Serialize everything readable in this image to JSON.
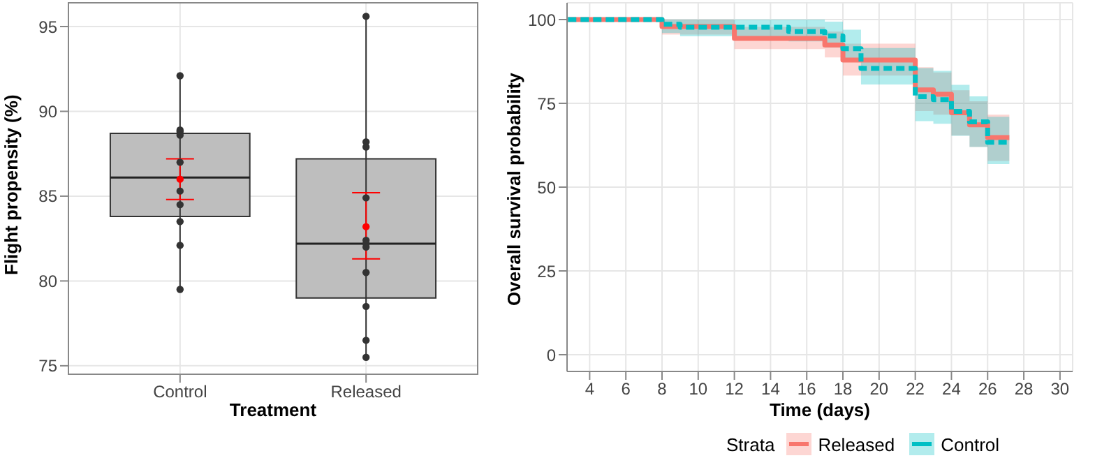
{
  "chart_data": [
    {
      "type": "box",
      "categories": [
        "Control",
        "Released"
      ],
      "xlabel": "Treatment",
      "ylabel": "Flight propensity (%)",
      "ylim": [
        74.5,
        96.4
      ],
      "yticks": [
        75,
        80,
        85,
        90,
        95
      ],
      "grid": true,
      "legend": false,
      "series": [
        {
          "type": "box",
          "color": "#bebebe",
          "boxes": [
            {
              "low": 79.5,
              "q1": 83.8,
              "median": 86.1,
              "q3": 88.7,
              "high": 92.1
            },
            {
              "low": 75.5,
              "q1": 79.0,
              "median": 82.2,
              "q3": 87.2,
              "high": 95.6
            }
          ]
        },
        {
          "type": "scatter",
          "color": "#333333",
          "x": [
            "Control",
            "Control",
            "Control",
            "Control",
            "Control",
            "Control",
            "Control",
            "Control",
            "Control",
            "Control",
            "Released",
            "Released",
            "Released",
            "Released",
            "Released",
            "Released",
            "Released",
            "Released",
            "Released",
            "Released",
            "Released"
          ],
          "values": [
            92.1,
            88.9,
            88.8,
            88.6,
            87.0,
            85.3,
            84.5,
            83.5,
            82.1,
            79.5,
            95.6,
            88.2,
            87.9,
            84.9,
            82.4,
            82.2,
            82.0,
            80.5,
            78.5,
            76.5,
            75.5
          ]
        },
        {
          "type": "scatter",
          "color": "#ff0000",
          "x": [
            "Control",
            "Released"
          ],
          "values": [
            86.0,
            83.2
          ],
          "errors": [
            [
              84.8,
              87.2
            ],
            [
              81.3,
              85.2
            ]
          ]
        }
      ]
    },
    {
      "type": "step",
      "xlabel": "Time (days)",
      "ylabel": "Overall survival probability",
      "legend_title": "Strata",
      "legend": "bottom",
      "xlim": [
        2.75,
        30.7
      ],
      "ylim": [
        -5,
        105
      ],
      "xticks": [
        4,
        6,
        8,
        10,
        12,
        14,
        16,
        18,
        20,
        22,
        24,
        26,
        28,
        30
      ],
      "yticks": [
        0,
        25,
        50,
        75,
        100
      ],
      "grid": true,
      "series": [
        {
          "name": "Released",
          "color": "#f8766d",
          "line_style": "solid",
          "x": [
            2.8,
            8,
            12,
            17,
            18,
            22,
            23,
            24,
            25,
            26,
            27.2
          ],
          "values": [
            100,
            97.9,
            94.4,
            92.4,
            87.9,
            79.0,
            77.7,
            72.2,
            68.6,
            64.8,
            64.8
          ],
          "lower": [
            100,
            95.5,
            91.2,
            88.7,
            83.3,
            72.7,
            71.6,
            65.4,
            62,
            57.8,
            57.8
          ],
          "upper": [
            100,
            100,
            97.8,
            96.4,
            92.8,
            85.8,
            84.2,
            78.9,
            75.6,
            71.6,
            71.6
          ]
        },
        {
          "name": "Control",
          "color": "#00bfc4",
          "line_style": "dashed",
          "x": [
            2.8,
            8,
            9,
            15,
            17,
            18,
            19,
            22,
            23,
            24,
            25,
            26,
            27.2
          ],
          "values": [
            100,
            98.6,
            97.7,
            96.4,
            95.1,
            91.3,
            85.4,
            77.0,
            76.1,
            72.6,
            69.5,
            63.4,
            63.4
          ],
          "lower": [
            100,
            96,
            95,
            93.5,
            91.6,
            87.5,
            80.6,
            69.7,
            68.9,
            65.3,
            62,
            56.9,
            56.9
          ],
          "upper": [
            100,
            100,
            100,
            100,
            99.4,
            97,
            91.5,
            85.5,
            84.7,
            80.5,
            77.1,
            71,
            71
          ]
        }
      ]
    }
  ]
}
